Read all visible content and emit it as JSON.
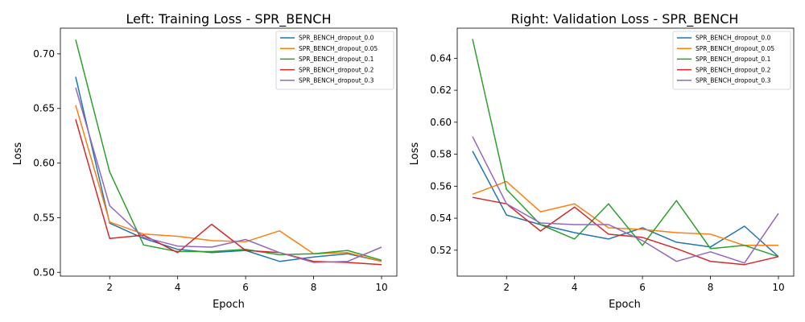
{
  "chart_data": [
    {
      "type": "line",
      "title": "Left: Training Loss - SPR_BENCH",
      "xlabel": "Epoch",
      "ylabel": "Loss",
      "x": [
        1,
        2,
        3,
        4,
        5,
        6,
        7,
        8,
        9,
        10
      ],
      "xticks": [
        "2",
        "4",
        "6",
        "8",
        "10"
      ],
      "xtick_values": [
        2,
        4,
        6,
        8,
        10
      ],
      "yticks": [
        "0.50",
        "0.55",
        "0.60",
        "0.65",
        "0.70"
      ],
      "ytick_values": [
        0.5,
        0.55,
        0.6,
        0.65,
        0.7
      ],
      "xlim": [
        0.55,
        10.45
      ],
      "ylim": [
        0.4965,
        0.7235
      ],
      "grid": false,
      "legend_position": "top-right",
      "series": [
        {
          "name": "SPR_BENCH_dropout_0.0",
          "color": "#1f77b4",
          "values": [
            0.679,
            0.545,
            0.531,
            0.521,
            0.518,
            0.52,
            0.51,
            0.514,
            0.517,
            0.51
          ]
        },
        {
          "name": "SPR_BENCH_dropout_0.05",
          "color": "#ff7f0e",
          "values": [
            0.653,
            0.546,
            0.535,
            0.533,
            0.529,
            0.528,
            0.538,
            0.517,
            0.518,
            0.51
          ]
        },
        {
          "name": "SPR_BENCH_dropout_0.1",
          "color": "#2ca02c",
          "values": [
            0.713,
            0.592,
            0.525,
            0.519,
            0.519,
            0.521,
            0.516,
            0.517,
            0.52,
            0.511
          ]
        },
        {
          "name": "SPR_BENCH_dropout_0.2",
          "color": "#d62728",
          "values": [
            0.64,
            0.531,
            0.534,
            0.518,
            0.544,
            0.52,
            0.518,
            0.51,
            0.509,
            0.507
          ]
        },
        {
          "name": "SPR_BENCH_dropout_0.3",
          "color": "#9467bd",
          "values": [
            0.669,
            0.561,
            0.532,
            0.524,
            0.523,
            0.53,
            0.518,
            0.509,
            0.51,
            0.523
          ]
        }
      ]
    },
    {
      "type": "line",
      "title": "Right: Validation Loss - SPR_BENCH",
      "xlabel": "Epoch",
      "ylabel": "Loss",
      "x": [
        1,
        2,
        3,
        4,
        5,
        6,
        7,
        8,
        9,
        10
      ],
      "xticks": [
        "2",
        "4",
        "6",
        "8",
        "10"
      ],
      "xtick_values": [
        2,
        4,
        6,
        8,
        10
      ],
      "yticks": [
        "0.52",
        "0.54",
        "0.56",
        "0.58",
        "0.60",
        "0.62",
        "0.64"
      ],
      "ytick_values": [
        0.52,
        0.54,
        0.56,
        0.58,
        0.6,
        0.62,
        0.64
      ],
      "xlim": [
        0.55,
        10.45
      ],
      "ylim": [
        0.5038,
        0.6588
      ],
      "grid": false,
      "legend_position": "top-right",
      "series": [
        {
          "name": "SPR_BENCH_dropout_0.0",
          "color": "#1f77b4",
          "values": [
            0.582,
            0.542,
            0.536,
            0.531,
            0.527,
            0.534,
            0.525,
            0.522,
            0.535,
            0.516
          ]
        },
        {
          "name": "SPR_BENCH_dropout_0.05",
          "color": "#ff7f0e",
          "values": [
            0.555,
            0.563,
            0.544,
            0.549,
            0.534,
            0.533,
            0.531,
            0.53,
            0.523,
            0.523
          ]
        },
        {
          "name": "SPR_BENCH_dropout_0.1",
          "color": "#2ca02c",
          "values": [
            0.652,
            0.558,
            0.536,
            0.527,
            0.549,
            0.523,
            0.551,
            0.521,
            0.523,
            0.516
          ]
        },
        {
          "name": "SPR_BENCH_dropout_0.2",
          "color": "#d62728",
          "values": [
            0.553,
            0.549,
            0.532,
            0.547,
            0.53,
            0.528,
            0.521,
            0.513,
            0.511,
            0.516
          ]
        },
        {
          "name": "SPR_BENCH_dropout_0.3",
          "color": "#9467bd",
          "values": [
            0.591,
            0.549,
            0.537,
            0.536,
            0.536,
            0.526,
            0.513,
            0.519,
            0.512,
            0.543
          ]
        }
      ]
    }
  ]
}
